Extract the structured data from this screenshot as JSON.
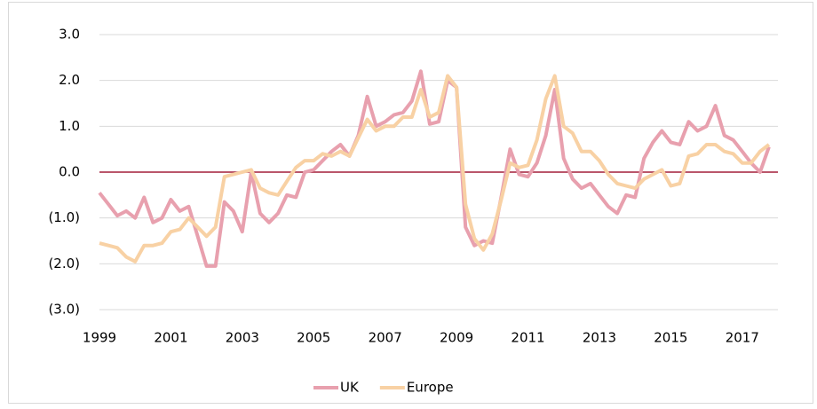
{
  "chart_data": {
    "type": "line",
    "x": [
      1999,
      1999.25,
      1999.5,
      1999.75,
      2000,
      2000.25,
      2000.5,
      2000.75,
      2001,
      2001.25,
      2001.5,
      2001.75,
      2002,
      2002.25,
      2002.5,
      2002.75,
      2003,
      2003.25,
      2003.5,
      2003.75,
      2004,
      2004.25,
      2004.5,
      2004.75,
      2005,
      2005.25,
      2005.5,
      2005.75,
      2006,
      2006.25,
      2006.5,
      2006.75,
      2007,
      2007.25,
      2007.5,
      2007.75,
      2008,
      2008.25,
      2008.5,
      2008.75,
      2009,
      2009.25,
      2009.5,
      2009.75,
      2010,
      2010.25,
      2010.5,
      2010.75,
      2011,
      2011.25,
      2011.5,
      2011.75,
      2012,
      2012.25,
      2012.5,
      2012.75,
      2013,
      2013.25,
      2013.5,
      2013.75,
      2014,
      2014.25,
      2014.5,
      2014.75,
      2015,
      2015.25,
      2015.5,
      2015.75,
      2016,
      2016.25,
      2016.5,
      2016.75,
      2017,
      2017.25,
      2017.5,
      2017.75
    ],
    "series": [
      {
        "name": "UK",
        "color": "#e8a0ae",
        "values": [
          -0.45,
          -0.7,
          -0.95,
          -0.85,
          -1.0,
          -0.55,
          -1.1,
          -1.0,
          -0.6,
          -0.85,
          -0.75,
          -1.4,
          -2.05,
          -2.05,
          -0.65,
          -0.85,
          -1.3,
          0.0,
          -0.9,
          -1.1,
          -0.9,
          -0.5,
          -0.55,
          0.0,
          0.05,
          0.25,
          0.45,
          0.6,
          0.35,
          0.8,
          1.65,
          1.0,
          1.1,
          1.25,
          1.3,
          1.55,
          2.2,
          1.05,
          1.1,
          2.0,
          1.85,
          -1.2,
          -1.6,
          -1.5,
          -1.55,
          -0.55,
          0.5,
          -0.05,
          -0.1,
          0.2,
          0.8,
          1.8,
          0.3,
          -0.15,
          -0.35,
          -0.25,
          -0.5,
          -0.75,
          -0.9,
          -0.5,
          -0.55,
          0.3,
          0.65,
          0.9,
          0.65,
          0.6,
          1.1,
          0.9,
          1.0,
          1.45,
          0.8,
          0.7,
          0.45,
          0.2,
          0.0,
          0.55
        ]
      },
      {
        "name": "Europe",
        "color": "#f8d1a4",
        "values": [
          -1.55,
          -1.6,
          -1.65,
          -1.85,
          -1.95,
          -1.6,
          -1.6,
          -1.55,
          -1.3,
          -1.25,
          -1.0,
          -1.2,
          -1.4,
          -1.2,
          -0.1,
          -0.05,
          0.0,
          0.05,
          -0.35,
          -0.45,
          -0.5,
          -0.2,
          0.1,
          0.25,
          0.25,
          0.4,
          0.35,
          0.45,
          0.35,
          0.75,
          1.15,
          0.9,
          1.0,
          1.0,
          1.2,
          1.2,
          1.8,
          1.2,
          1.3,
          2.1,
          1.85,
          -0.7,
          -1.45,
          -1.7,
          -1.35,
          -0.6,
          0.2,
          0.1,
          0.15,
          0.7,
          1.6,
          2.1,
          1.0,
          0.85,
          0.45,
          0.45,
          0.25,
          -0.05,
          -0.25,
          -0.3,
          -0.35,
          -0.15,
          -0.05,
          0.05,
          -0.3,
          -0.25,
          0.35,
          0.4,
          0.6,
          0.6,
          0.45,
          0.4,
          0.2,
          0.2,
          0.45,
          0.6
        ]
      }
    ],
    "xlim": [
      1999,
      2018
    ],
    "xticks": [
      1999,
      2001,
      2003,
      2005,
      2007,
      2009,
      2011,
      2013,
      2015,
      2017
    ],
    "ylim": [
      -3,
      3
    ],
    "yticks": [
      {
        "value": 3,
        "label": "3.0"
      },
      {
        "value": 2,
        "label": "2.0"
      },
      {
        "value": 1,
        "label": "1.0"
      },
      {
        "value": 0,
        "label": "0.0"
      },
      {
        "value": -1,
        "label": "(1.0)"
      },
      {
        "value": -2,
        "label": "(2.0)"
      },
      {
        "value": -3,
        "label": "(3.0)"
      }
    ],
    "grid": true,
    "grid_color": "#d9d9d9",
    "zero_line_color": "#a31f3a",
    "legend": "bottom"
  }
}
